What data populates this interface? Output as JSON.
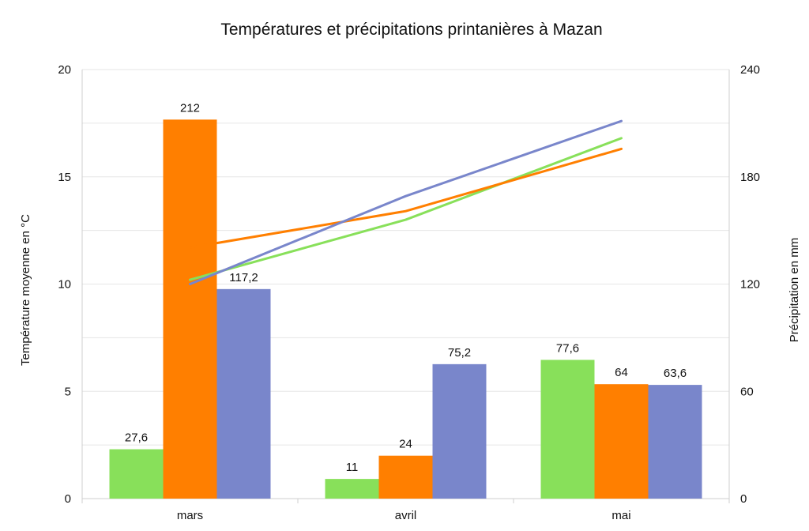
{
  "chart_data": {
    "type": "bar",
    "title": "Températures et précipitations printanières à Mazan",
    "categories": [
      "mars",
      "avril",
      "mai"
    ],
    "ylabel": "Température moyenne en °C",
    "y2label": "Précipitation en mm",
    "ylim": [
      0,
      20
    ],
    "y2lim": [
      0,
      240
    ],
    "yticks": [
      "0",
      "5",
      "10",
      "15",
      "20"
    ],
    "y2ticks": [
      "0",
      "60",
      "120",
      "180",
      "240"
    ],
    "grid": true,
    "legend": "none",
    "bar_series": [
      {
        "axis": "right",
        "color": "#88e05a",
        "values": [
          27.6,
          11,
          77.6
        ],
        "labels": [
          "27,6",
          "11",
          "77,6"
        ]
      },
      {
        "axis": "right",
        "color": "#ff7f00",
        "values": [
          212,
          24,
          64
        ],
        "labels": [
          "212",
          "24",
          "64"
        ]
      },
      {
        "axis": "right",
        "color": "#7986cb",
        "values": [
          117.2,
          75.2,
          63.6
        ],
        "labels": [
          "117,2",
          "75,2",
          "63,6"
        ]
      }
    ],
    "line_series": [
      {
        "axis": "left",
        "color": "#88e05a",
        "values": [
          10.2,
          13.0,
          16.8
        ]
      },
      {
        "axis": "left",
        "color": "#ff7f00",
        "values": [
          11.7,
          13.4,
          16.3
        ]
      },
      {
        "axis": "left",
        "color": "#7986cb",
        "values": [
          10.0,
          14.1,
          17.6
        ]
      }
    ]
  }
}
